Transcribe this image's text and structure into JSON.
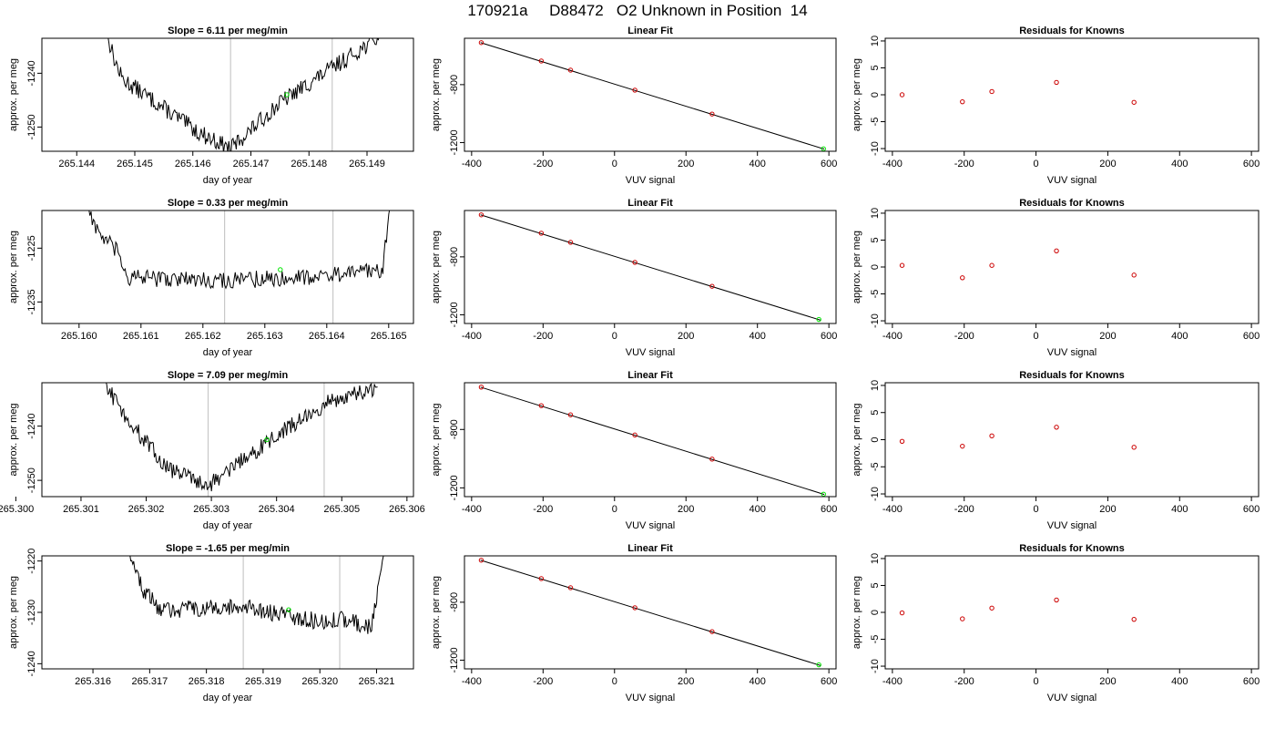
{
  "page": {
    "title": "170921a     D88472   O2 Unknown in Position  14"
  },
  "colors": {
    "line": "#000000",
    "vline": "#c8c8c8",
    "marker_green": "#00e600",
    "marker_red": "#cc0000"
  },
  "chart_data": [
    {
      "type": "line",
      "title": "Slope =  6.11  per meg/min",
      "xlabel": "day of year",
      "ylabel": "approx. per meg",
      "xlim": [
        265.1434,
        265.1498
      ],
      "ylim": [
        -1254.5,
        -1233.5
      ],
      "xticks": [
        265.144,
        265.145,
        265.146,
        265.147,
        265.148,
        265.149
      ],
      "xtick_labels": [
        "265.144",
        "265.145",
        "265.146",
        "265.147",
        "265.148",
        "265.149"
      ],
      "yticks": [
        -1240,
        -1250
      ],
      "ytick_labels": [
        "-1240",
        "-1250"
      ],
      "vlines": [
        265.14665,
        265.1484
      ],
      "x_start": 265.1445,
      "x_end": 265.14925,
      "series": [
        {
          "values": [
            [
              265.1445,
              -1232.0
            ],
            [
              265.14465,
              -1237.5
            ],
            [
              265.14478,
              -1241.0
            ],
            [
              265.1461,
              -1251.0
            ],
            [
              265.14665,
              -1254.0
            ],
            [
              265.1475,
              -1245.5
            ],
            [
              265.1484,
              -1239.0
            ],
            [
              265.14925,
              -1233.0
            ]
          ]
        }
      ],
      "points": [
        {
          "x": 265.14762,
          "y": -1244.0,
          "marker": "green"
        }
      ],
      "grid": false
    },
    {
      "type": "scatter",
      "title": "Linear Fit",
      "xlabel": "VUV signal",
      "ylabel": "approx. per meg",
      "xlim": [
        -420,
        620
      ],
      "ylim": [
        -1260,
        -480
      ],
      "xticks": [
        -400,
        -200,
        0,
        200,
        400,
        600
      ],
      "xtick_labels": [
        "-400",
        "-200",
        "0",
        "200",
        "400",
        "600"
      ],
      "yticks": [
        -800,
        -1200
      ],
      "ytick_labels": [
        "-800",
        "-1200"
      ],
      "fit_line": [
        [
          -375,
          -510
        ],
        [
          587,
          -1245
        ]
      ],
      "points": [
        {
          "x": -373,
          "y": -510,
          "marker": "red"
        },
        {
          "x": -205,
          "y": -637,
          "marker": "red"
        },
        {
          "x": -123,
          "y": -700,
          "marker": "red"
        },
        {
          "x": 57,
          "y": -838,
          "marker": "red"
        },
        {
          "x": 273,
          "y": -1003,
          "marker": "red"
        },
        {
          "x": 585,
          "y": -1243,
          "marker": "green"
        }
      ],
      "grid": false
    },
    {
      "type": "scatter",
      "title": "Residuals for Knowns",
      "xlabel": "VUV signal",
      "ylabel": "approx. per meg",
      "xlim": [
        -420,
        620
      ],
      "ylim": [
        -10.5,
        10.5
      ],
      "xticks": [
        -400,
        -200,
        0,
        200,
        400,
        600
      ],
      "xtick_labels": [
        "-400",
        "-200",
        "0",
        "200",
        "400",
        "600"
      ],
      "yticks": [
        10,
        5,
        0,
        -5,
        -10
      ],
      "ytick_labels": [
        "10",
        "5",
        "0",
        "-5",
        "-10"
      ],
      "points": [
        {
          "x": -373,
          "y": 0.0,
          "marker": "red"
        },
        {
          "x": -205,
          "y": -1.3,
          "marker": "red"
        },
        {
          "x": -123,
          "y": 0.6,
          "marker": "red"
        },
        {
          "x": 57,
          "y": 2.3,
          "marker": "red"
        },
        {
          "x": 273,
          "y": -1.4,
          "marker": "red"
        }
      ],
      "grid": false
    },
    {
      "type": "line",
      "title": "Slope =  0.33  per meg/min",
      "xlabel": "day of year",
      "ylabel": "approx. per meg",
      "xlim": [
        265.1594,
        265.1654
      ],
      "ylim": [
        -1239.0,
        -1218.0
      ],
      "xticks": [
        265.16,
        265.161,
        265.162,
        265.163,
        265.164,
        265.165
      ],
      "xtick_labels": [
        "265.160",
        "265.161",
        "265.162",
        "265.163",
        "265.164",
        "265.165"
      ],
      "yticks": [
        -1225,
        -1235
      ],
      "ytick_labels": [
        "-1225",
        "-1235"
      ],
      "vlines": [
        265.16235,
        265.1641
      ],
      "x_start": 265.1601,
      "x_end": 265.16502,
      "series": [
        {
          "values": [
            [
              265.1601,
              -1216.0
            ],
            [
              265.1603,
              -1222.0
            ],
            [
              265.1606,
              -1225.5
            ],
            [
              265.1608,
              -1230.5
            ],
            [
              265.1625,
              -1231.0
            ],
            [
              265.1641,
              -1230.0
            ],
            [
              265.1649,
              -1229.0
            ],
            [
              265.16502,
              -1217.0
            ]
          ]
        }
      ],
      "points": [
        {
          "x": 265.16325,
          "y": -1229.0,
          "marker": "green"
        }
      ],
      "grid": false
    },
    {
      "type": "scatter",
      "title": "Linear Fit",
      "xlabel": "VUV signal",
      "ylabel": "approx. per meg",
      "xlim": [
        -420,
        620
      ],
      "ylim": [
        -1260,
        -480
      ],
      "xticks": [
        -400,
        -200,
        0,
        200,
        400,
        600
      ],
      "xtick_labels": [
        "-400",
        "-200",
        "0",
        "200",
        "400",
        "600"
      ],
      "yticks": [
        -800,
        -1200
      ],
      "ytick_labels": [
        "-800",
        "-1200"
      ],
      "fit_line": [
        [
          -375,
          -510
        ],
        [
          578,
          -1238
        ]
      ],
      "points": [
        {
          "x": -373,
          "y": -510,
          "marker": "red"
        },
        {
          "x": -205,
          "y": -637,
          "marker": "red"
        },
        {
          "x": -123,
          "y": -700,
          "marker": "red"
        },
        {
          "x": 57,
          "y": -838,
          "marker": "red"
        },
        {
          "x": 273,
          "y": -1003,
          "marker": "red"
        },
        {
          "x": 572,
          "y": -1232,
          "marker": "green"
        }
      ],
      "grid": false
    },
    {
      "type": "scatter",
      "title": "Residuals for Knowns",
      "xlabel": "VUV signal",
      "ylabel": "approx. per meg",
      "xlim": [
        -420,
        620
      ],
      "ylim": [
        -10.5,
        10.5
      ],
      "xticks": [
        -400,
        -200,
        0,
        200,
        400,
        600
      ],
      "xtick_labels": [
        "-400",
        "-200",
        "0",
        "200",
        "400",
        "600"
      ],
      "yticks": [
        10,
        5,
        0,
        -5,
        -10
      ],
      "ytick_labels": [
        "10",
        "5",
        "0",
        "-5",
        "-10"
      ],
      "points": [
        {
          "x": -373,
          "y": 0.3,
          "marker": "red"
        },
        {
          "x": -205,
          "y": -2.0,
          "marker": "red"
        },
        {
          "x": -123,
          "y": 0.3,
          "marker": "red"
        },
        {
          "x": 57,
          "y": 3.0,
          "marker": "red"
        },
        {
          "x": 273,
          "y": -1.5,
          "marker": "red"
        }
      ],
      "grid": false
    },
    {
      "type": "line",
      "title": "Slope =  7.09  per meg/min",
      "xlabel": "day of year",
      "ylabel": "approx. per meg",
      "xlim": [
        265.3004,
        265.3061
      ],
      "ylim": [
        -1253.0,
        -1232.0
      ],
      "xticks": [
        265.3,
        265.301,
        265.302,
        265.303,
        265.304,
        265.305,
        265.306
      ],
      "xtick_labels": [
        "265.300",
        "265.301",
        "265.302",
        "265.303",
        "265.304",
        "265.305",
        "265.306"
      ],
      "yticks": [
        -1240,
        -1250
      ],
      "ytick_labels": [
        "-1240",
        "-1250"
      ],
      "vlines": [
        265.30295,
        265.30473
      ],
      "x_start": 265.30133,
      "x_end": 265.30555,
      "series": [
        {
          "values": [
            [
              265.30133,
              -1231.0
            ],
            [
              265.3016,
              -1237.0
            ],
            [
              265.3023,
              -1247.5
            ],
            [
              265.30295,
              -1251.0
            ],
            [
              265.30385,
              -1243.0
            ],
            [
              265.30473,
              -1236.0
            ],
            [
              265.30555,
              -1233.0
            ]
          ]
        }
      ],
      "points": [
        {
          "x": 265.30385,
          "y": -1242.5,
          "marker": "green"
        }
      ],
      "grid": false
    },
    {
      "type": "scatter",
      "title": "Linear Fit",
      "xlabel": "VUV signal",
      "ylabel": "approx. per meg",
      "xlim": [
        -420,
        620
      ],
      "ylim": [
        -1260,
        -480
      ],
      "xticks": [
        -400,
        -200,
        0,
        200,
        400,
        600
      ],
      "xtick_labels": [
        "-400",
        "-200",
        "0",
        "200",
        "400",
        "600"
      ],
      "yticks": [
        -800,
        -1200
      ],
      "ytick_labels": [
        "-800",
        "-1200"
      ],
      "fit_line": [
        [
          -375,
          -510
        ],
        [
          587,
          -1245
        ]
      ],
      "points": [
        {
          "x": -373,
          "y": -510,
          "marker": "red"
        },
        {
          "x": -205,
          "y": -637,
          "marker": "red"
        },
        {
          "x": -123,
          "y": -700,
          "marker": "red"
        },
        {
          "x": 57,
          "y": -838,
          "marker": "red"
        },
        {
          "x": 273,
          "y": -1003,
          "marker": "red"
        },
        {
          "x": 585,
          "y": -1243,
          "marker": "green"
        }
      ],
      "grid": false
    },
    {
      "type": "scatter",
      "title": "Residuals for Knowns",
      "xlabel": "VUV signal",
      "ylabel": "approx. per meg",
      "xlim": [
        -420,
        620
      ],
      "ylim": [
        -10.5,
        10.5
      ],
      "xticks": [
        -400,
        -200,
        0,
        200,
        400,
        600
      ],
      "xtick_labels": [
        "-400",
        "-200",
        "0",
        "200",
        "400",
        "600"
      ],
      "yticks": [
        10,
        5,
        0,
        -5,
        -10
      ],
      "ytick_labels": [
        "10",
        "5",
        "0",
        "-5",
        "-10"
      ],
      "points": [
        {
          "x": -373,
          "y": -0.3,
          "marker": "red"
        },
        {
          "x": -205,
          "y": -1.2,
          "marker": "red"
        },
        {
          "x": -123,
          "y": 0.7,
          "marker": "red"
        },
        {
          "x": 57,
          "y": 2.3,
          "marker": "red"
        },
        {
          "x": 273,
          "y": -1.4,
          "marker": "red"
        }
      ],
      "grid": false
    },
    {
      "type": "line",
      "title": "Slope =  -1.65  per meg/min",
      "xlabel": "day of year",
      "ylabel": "approx. per meg",
      "xlim": [
        265.3151,
        265.32165
      ],
      "ylim": [
        -1241.0,
        -1219.0
      ],
      "xticks": [
        265.316,
        265.317,
        265.318,
        265.319,
        265.32,
        265.321
      ],
      "xtick_labels": [
        "265.316",
        "265.317",
        "265.318",
        "265.319",
        "265.320",
        "265.321"
      ],
      "yticks": [
        -1220,
        -1230,
        -1240
      ],
      "ytick_labels": [
        "-1220",
        "-1230",
        "-1240"
      ],
      "vlines": [
        265.31865,
        265.32035
      ],
      "x_start": 265.31665,
      "x_end": 265.32112,
      "series": [
        {
          "values": [
            [
              265.31665,
              -1219.0
            ],
            [
              265.3169,
              -1226.0
            ],
            [
              265.3172,
              -1229.5
            ],
            [
              265.31865,
              -1229.0
            ],
            [
              265.3201,
              -1232.0
            ],
            [
              265.32035,
              -1231.0
            ],
            [
              265.3209,
              -1233.0
            ],
            [
              265.32112,
              -1219.0
            ]
          ]
        }
      ],
      "points": [
        {
          "x": 265.31945,
          "y": -1229.5,
          "marker": "green"
        }
      ],
      "grid": false
    },
    {
      "type": "scatter",
      "title": "Linear Fit",
      "xlabel": "VUV signal",
      "ylabel": "approx. per meg",
      "xlim": [
        -420,
        620
      ],
      "ylim": [
        -1260,
        -480
      ],
      "xticks": [
        -400,
        -200,
        0,
        200,
        400,
        600
      ],
      "xtick_labels": [
        "-400",
        "-200",
        "0",
        "200",
        "400",
        "600"
      ],
      "yticks": [
        -800,
        -1200
      ],
      "ytick_labels": [
        "-800",
        "-1200"
      ],
      "fit_line": [
        [
          -375,
          -510
        ],
        [
          578,
          -1238
        ]
      ],
      "points": [
        {
          "x": -373,
          "y": -510,
          "marker": "red"
        },
        {
          "x": -205,
          "y": -637,
          "marker": "red"
        },
        {
          "x": -123,
          "y": -700,
          "marker": "red"
        },
        {
          "x": 57,
          "y": -838,
          "marker": "red"
        },
        {
          "x": 273,
          "y": -1003,
          "marker": "red"
        },
        {
          "x": 572,
          "y": -1232,
          "marker": "green"
        }
      ],
      "grid": false
    },
    {
      "type": "scatter",
      "title": "Residuals for Knowns",
      "xlabel": "VUV signal",
      "ylabel": "approx. per meg",
      "xlim": [
        -420,
        620
      ],
      "ylim": [
        -10.5,
        10.5
      ],
      "xticks": [
        -400,
        -200,
        0,
        200,
        400,
        600
      ],
      "xtick_labels": [
        "-400",
        "-200",
        "0",
        "200",
        "400",
        "600"
      ],
      "yticks": [
        10,
        5,
        0,
        -5,
        -10
      ],
      "ytick_labels": [
        "10",
        "5",
        "0",
        "-5",
        "-10"
      ],
      "points": [
        {
          "x": -373,
          "y": -0.1,
          "marker": "red"
        },
        {
          "x": -205,
          "y": -1.2,
          "marker": "red"
        },
        {
          "x": -123,
          "y": 0.8,
          "marker": "red"
        },
        {
          "x": 57,
          "y": 2.3,
          "marker": "red"
        },
        {
          "x": 273,
          "y": -1.3,
          "marker": "red"
        }
      ],
      "grid": false
    }
  ]
}
